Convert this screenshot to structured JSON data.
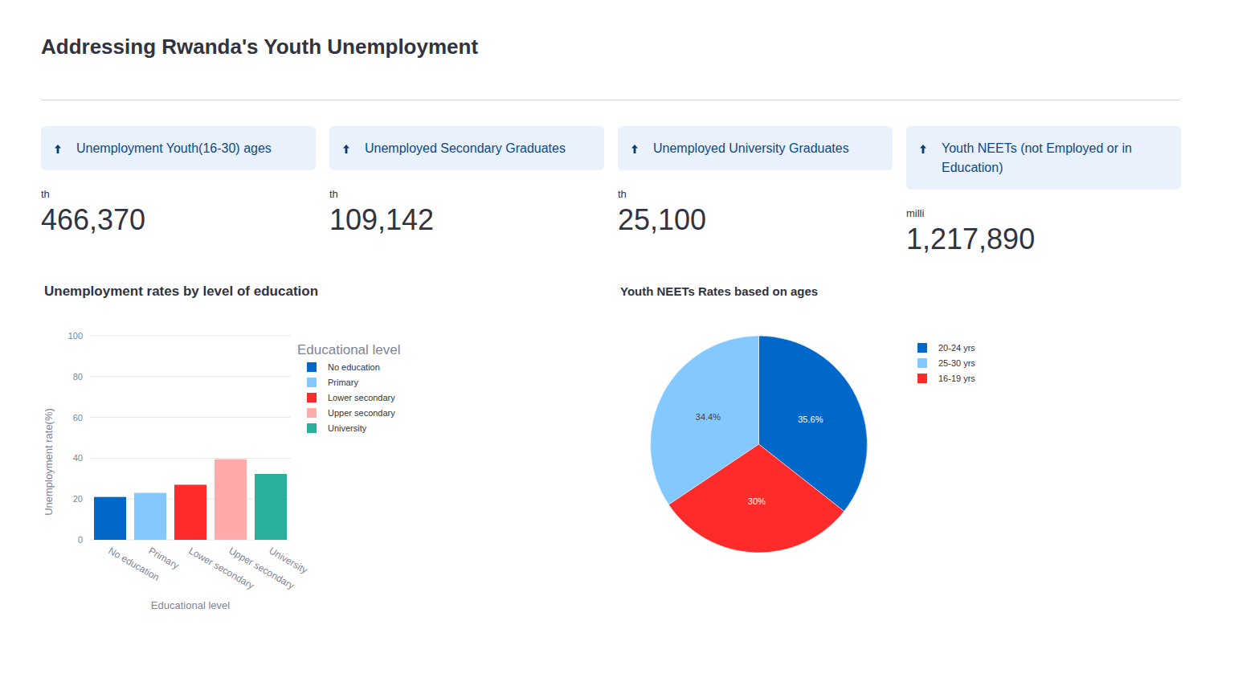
{
  "header": {
    "title": "Addressing Rwanda's Youth Unemployment"
  },
  "metrics": [
    {
      "title": "Unemployment Youth(16-30) ages",
      "unit": "th",
      "value": "466,370"
    },
    {
      "title": "Unemployed Secondary Graduates",
      "unit": "th",
      "value": "109,142"
    },
    {
      "title": "Unemployed University Graduates",
      "unit": "th",
      "value": "25,100"
    },
    {
      "title": "Youth NEETs (not Employed or in Education)",
      "unit": "milli",
      "value": "1,217,890"
    }
  ],
  "chart_data": [
    {
      "type": "bar",
      "title": "Unemployment rates by level of education",
      "x_label": "Educational level",
      "y_label": "Unemployment rate(%)",
      "legend_title": "Educational level",
      "categories": [
        "No education",
        "Primary",
        "Lower secondary",
        "Upper secondary",
        "University"
      ],
      "values": [
        21,
        23,
        27,
        39.5,
        32.3
      ],
      "colors": [
        "#0068c9",
        "#83c9ff",
        "#ff2b2b",
        "#ffabab",
        "#29b09d"
      ],
      "ylim": [
        0,
        100
      ],
      "yticks": [
        0,
        20,
        40,
        60,
        80,
        100
      ],
      "grid": true,
      "legend": "top-right"
    },
    {
      "type": "pie",
      "title": "Youth NEETs Rates based on ages",
      "categories": [
        "20-24 yrs",
        "25-30 yrs",
        "16-19 yrs"
      ],
      "values": [
        35.6,
        34.4,
        30
      ],
      "value_labels": [
        "35.6%",
        "34.4%",
        "30%"
      ],
      "colors": [
        "#0068c9",
        "#83c9ff",
        "#ff2b2b"
      ],
      "data_labels": true,
      "legend": "top-right"
    }
  ]
}
